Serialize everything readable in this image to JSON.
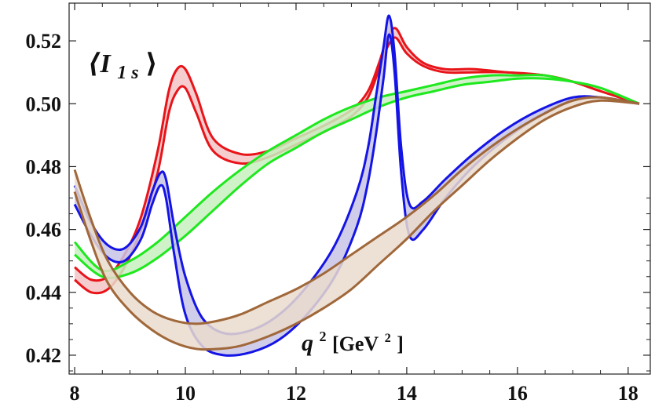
{
  "chart_data": {
    "type": "line",
    "title": "",
    "annotation_label": "⟨I",
    "annotation_sub": "1 s",
    "annotation_close": "⟩",
    "xlabel_main": "q",
    "xlabel_sup": "2",
    "xlabel_unit_open": " [GeV",
    "xlabel_unit_sup": "2",
    "xlabel_unit_close": "]",
    "xlim": [
      7.9,
      18.4
    ],
    "ylim": [
      0.414,
      0.532
    ],
    "xticks": [
      8,
      10,
      12,
      14,
      16,
      18
    ],
    "yticks": [
      0.42,
      0.44,
      0.46,
      0.48,
      0.5,
      0.52
    ],
    "xtick_labels": [
      "8",
      "10",
      "12",
      "14",
      "16",
      "18"
    ],
    "ytick_labels": [
      "0.42",
      "0.44",
      "0.46",
      "0.48",
      "0.50",
      "0.52"
    ],
    "grid": false,
    "series": [
      {
        "color": "#e8141a",
        "fill": "#f5c4c6",
        "upper": {
          "x": [
            8.0,
            8.3,
            8.6,
            8.9,
            9.2,
            9.5,
            9.7,
            9.85,
            10.0,
            10.2,
            10.5,
            11.0,
            11.5,
            12.0,
            12.5,
            13.0,
            13.3,
            13.5,
            13.65,
            13.8,
            14.0,
            14.3,
            14.7,
            15.2,
            15.8,
            16.5,
            17.0,
            17.5,
            18.2
          ],
          "y": [
            0.448,
            0.444,
            0.445,
            0.452,
            0.464,
            0.485,
            0.504,
            0.511,
            0.511,
            0.503,
            0.489,
            0.484,
            0.485,
            0.489,
            0.493,
            0.498,
            0.504,
            0.513,
            0.521,
            0.524,
            0.518,
            0.513,
            0.511,
            0.511,
            0.51,
            0.509,
            0.507,
            0.504,
            0.5
          ]
        },
        "lower": {
          "x": [
            8.0,
            8.3,
            8.6,
            8.9,
            9.2,
            9.5,
            9.7,
            9.85,
            10.0,
            10.2,
            10.5,
            11.0,
            11.5,
            12.0,
            12.5,
            13.0,
            13.3,
            13.5,
            13.65,
            13.8,
            14.0,
            14.3,
            14.7,
            15.2,
            15.8,
            16.5,
            17.0,
            17.5,
            18.2
          ],
          "y": [
            0.444,
            0.44,
            0.441,
            0.448,
            0.46,
            0.478,
            0.497,
            0.504,
            0.505,
            0.497,
            0.485,
            0.481,
            0.483,
            0.487,
            0.491,
            0.496,
            0.502,
            0.511,
            0.518,
            0.521,
            0.516,
            0.512,
            0.51,
            0.51,
            0.51,
            0.509,
            0.507,
            0.504,
            0.5
          ]
        }
      },
      {
        "color": "#1ee81e",
        "fill": "#c8f0c0",
        "upper": {
          "x": [
            8.0,
            8.5,
            9.0,
            9.5,
            10.0,
            10.5,
            11.0,
            11.5,
            12.0,
            12.5,
            13.0,
            13.5,
            14.0,
            14.5,
            15.0,
            15.5,
            16.0,
            16.5,
            17.0,
            17.5,
            18.2
          ],
          "y": [
            0.456,
            0.447,
            0.45,
            0.456,
            0.464,
            0.472,
            0.479,
            0.485,
            0.49,
            0.495,
            0.499,
            0.502,
            0.504,
            0.506,
            0.508,
            0.509,
            0.509,
            0.509,
            0.507,
            0.505,
            0.5
          ]
        },
        "lower": {
          "x": [
            8.0,
            8.5,
            9.0,
            9.5,
            10.0,
            10.5,
            11.0,
            11.5,
            12.0,
            12.5,
            13.0,
            13.5,
            14.0,
            14.5,
            15.0,
            15.5,
            16.0,
            16.5,
            17.0,
            17.5,
            18.2
          ],
          "y": [
            0.452,
            0.445,
            0.446,
            0.451,
            0.458,
            0.466,
            0.474,
            0.481,
            0.486,
            0.491,
            0.495,
            0.499,
            0.502,
            0.504,
            0.506,
            0.507,
            0.508,
            0.508,
            0.507,
            0.505,
            0.5
          ]
        }
      },
      {
        "color": "#1414e6",
        "fill": "#c8c4e8",
        "upper": {
          "x": [
            8.0,
            8.3,
            8.6,
            8.9,
            9.2,
            9.4,
            9.55,
            9.65,
            9.8,
            10.0,
            10.3,
            10.7,
            11.2,
            11.7,
            12.2,
            12.7,
            13.1,
            13.3,
            13.45,
            13.58,
            13.68,
            13.78,
            13.9,
            14.05,
            14.3,
            14.7,
            15.2,
            15.8,
            16.4,
            17.0,
            17.5,
            18.2
          ],
          "y": [
            0.474,
            0.462,
            0.455,
            0.454,
            0.461,
            0.472,
            0.478,
            0.476,
            0.461,
            0.445,
            0.432,
            0.427,
            0.428,
            0.433,
            0.442,
            0.455,
            0.472,
            0.486,
            0.503,
            0.518,
            0.528,
            0.516,
            0.486,
            0.468,
            0.469,
            0.476,
            0.484,
            0.492,
            0.498,
            0.502,
            0.502,
            0.5
          ]
        },
        "lower": {
          "x": [
            8.0,
            8.3,
            8.6,
            8.9,
            9.2,
            9.4,
            9.55,
            9.65,
            9.8,
            10.0,
            10.3,
            10.7,
            11.2,
            11.7,
            12.2,
            12.7,
            13.1,
            13.3,
            13.45,
            13.58,
            13.68,
            13.78,
            13.9,
            14.05,
            14.3,
            14.7,
            15.2,
            15.8,
            16.4,
            17.0,
            17.5,
            18.2
          ],
          "y": [
            0.468,
            0.458,
            0.451,
            0.45,
            0.457,
            0.468,
            0.474,
            0.47,
            0.452,
            0.433,
            0.423,
            0.42,
            0.421,
            0.425,
            0.433,
            0.445,
            0.461,
            0.475,
            0.491,
            0.508,
            0.522,
            0.51,
            0.478,
            0.458,
            0.46,
            0.47,
            0.48,
            0.489,
            0.496,
            0.501,
            0.502,
            0.5
          ]
        }
      },
      {
        "color": "#a0683a",
        "fill": "#eadbcc",
        "upper": {
          "x": [
            8.0,
            8.3,
            8.6,
            9.0,
            9.4,
            9.8,
            10.2,
            10.6,
            11.0,
            11.5,
            12.0,
            12.5,
            13.0,
            13.5,
            14.0,
            14.5,
            15.0,
            15.5,
            16.0,
            16.5,
            17.0,
            17.5,
            18.2
          ],
          "y": [
            0.479,
            0.463,
            0.45,
            0.44,
            0.434,
            0.431,
            0.43,
            0.431,
            0.433,
            0.437,
            0.441,
            0.446,
            0.452,
            0.458,
            0.464,
            0.471,
            0.479,
            0.486,
            0.492,
            0.497,
            0.501,
            0.502,
            0.5
          ]
        },
        "lower": {
          "x": [
            8.0,
            8.3,
            8.6,
            9.0,
            9.4,
            9.8,
            10.2,
            10.6,
            11.0,
            11.5,
            12.0,
            12.5,
            13.0,
            13.5,
            14.0,
            14.5,
            15.0,
            15.5,
            16.0,
            16.5,
            17.0,
            17.5,
            18.2
          ],
          "y": [
            0.472,
            0.456,
            0.443,
            0.434,
            0.428,
            0.424,
            0.422,
            0.422,
            0.423,
            0.426,
            0.43,
            0.435,
            0.441,
            0.449,
            0.457,
            0.466,
            0.474,
            0.482,
            0.489,
            0.495,
            0.499,
            0.501,
            0.5
          ]
        }
      }
    ]
  }
}
